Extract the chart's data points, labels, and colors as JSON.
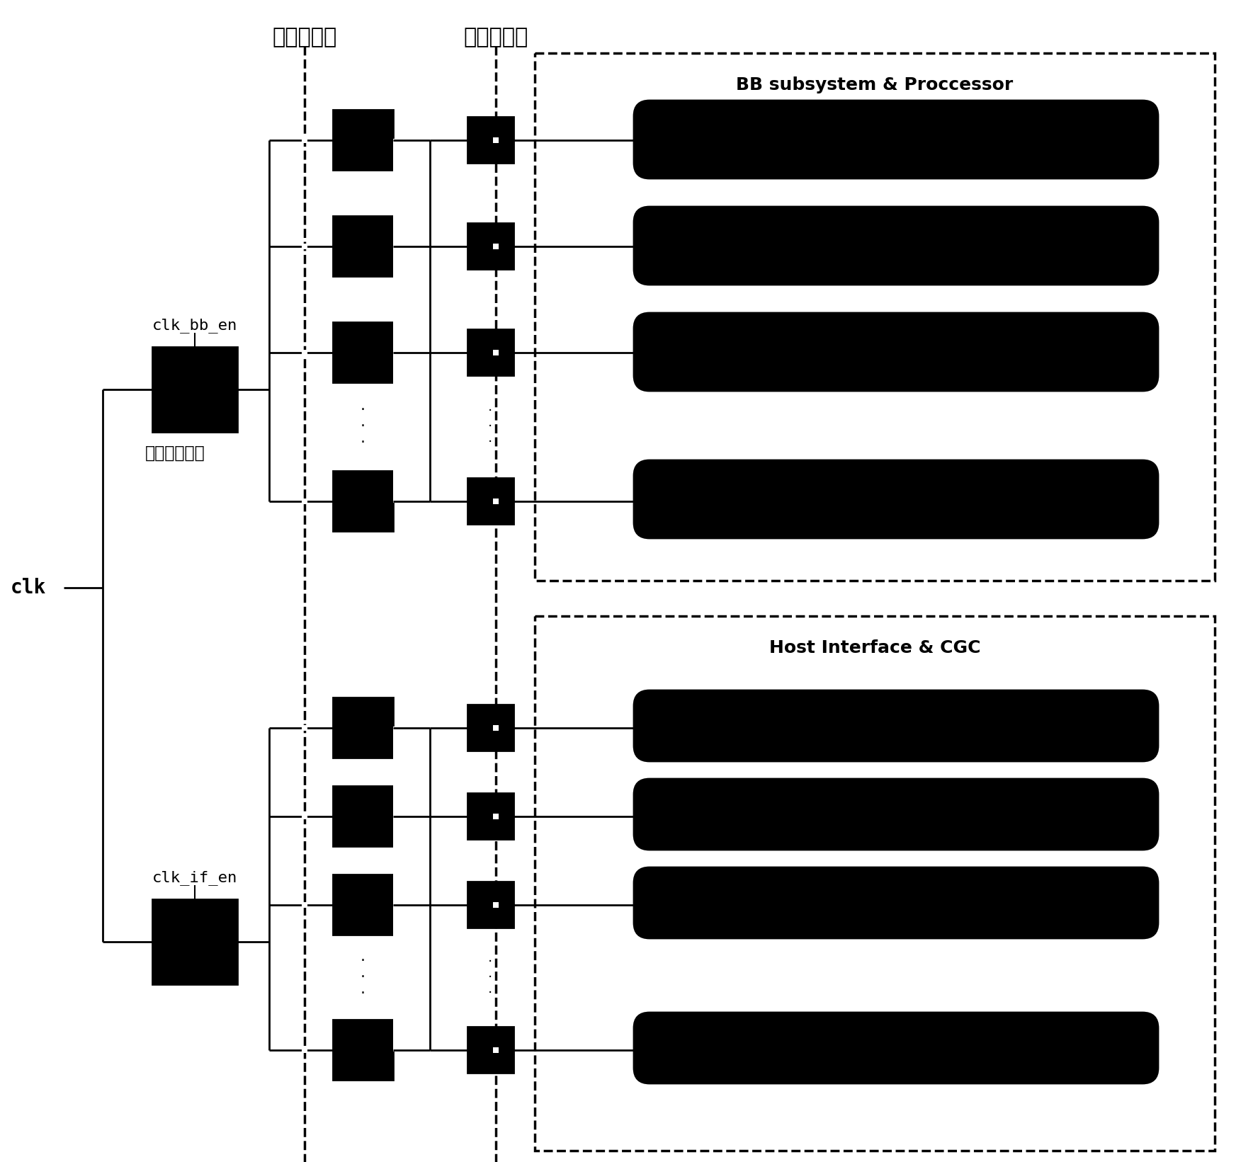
{
  "title_sys": "系统级门控",
  "title_adapt": "自适应门控",
  "label_bb": "BB subsystem & Proccessor",
  "label_host": "Host Interface & CGC",
  "label_clk": "clk",
  "label_clk_bb_en": "clk_bb_en",
  "label_clk_if_en": "clk_if_en",
  "label_clk_unit": "时钟门控单元",
  "dots": "·\n·\n·",
  "bg_color": "#ffffff",
  "box_color": "#000000",
  "text_color": "#000000"
}
